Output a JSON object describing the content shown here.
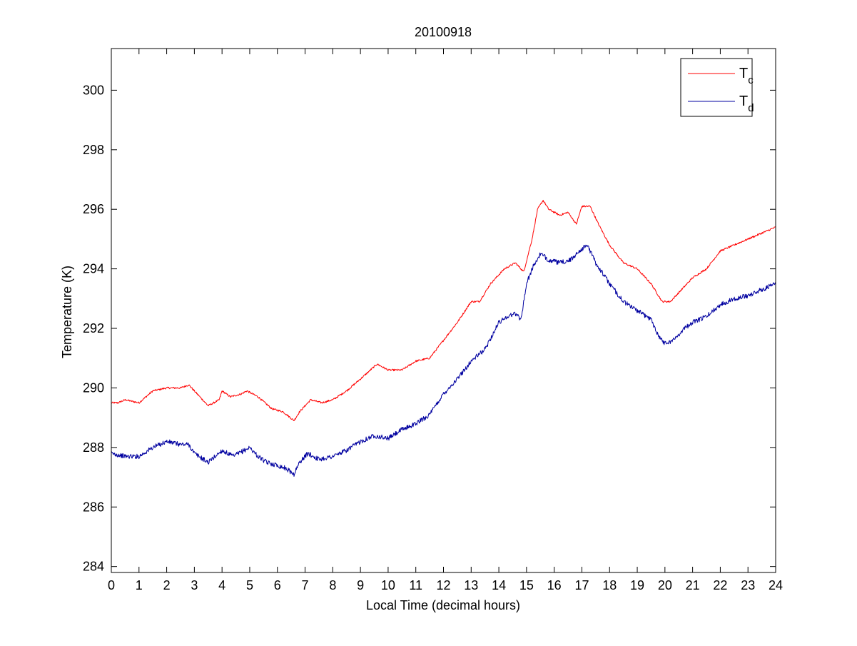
{
  "chart_data": {
    "type": "line",
    "title": "20100918",
    "xlabel": "Local Time (decimal hours)",
    "ylabel": "Temperature (K)",
    "xlim": [
      0,
      24
    ],
    "ylim": [
      283.8,
      301.4
    ],
    "xticks": [
      0,
      1,
      2,
      3,
      4,
      5,
      6,
      7,
      8,
      9,
      10,
      11,
      12,
      13,
      14,
      15,
      16,
      17,
      18,
      19,
      20,
      21,
      22,
      23,
      24
    ],
    "yticks": [
      284,
      286,
      288,
      290,
      292,
      294,
      296,
      298,
      300
    ],
    "grid": false,
    "legend_position": "top-right",
    "series": [
      {
        "name": "T",
        "subscript": "c",
        "color": "#ff0000",
        "x": [
          0,
          0.25,
          0.5,
          1,
          1.5,
          2,
          2.5,
          2.8,
          3,
          3.5,
          3.9,
          4,
          4.3,
          4.7,
          4.9,
          5.3,
          5.8,
          6.2,
          6.6,
          6.8,
          7.2,
          7.6,
          8,
          8.5,
          9,
          9.6,
          10,
          10.5,
          11,
          11.5,
          12,
          12.5,
          13,
          13.3,
          13.7,
          14.2,
          14.6,
          14.9,
          15.2,
          15.4,
          15.6,
          15.8,
          16.2,
          16.5,
          16.8,
          17,
          17.3,
          17.6,
          18,
          18.5,
          19,
          19.5,
          19.9,
          20.2,
          20.6,
          21,
          21.5,
          22,
          22.5,
          23,
          23.5,
          24
        ],
        "values": [
          289.5,
          289.5,
          289.6,
          289.5,
          289.9,
          290.0,
          290.0,
          290.1,
          289.9,
          289.4,
          289.6,
          289.9,
          289.7,
          289.8,
          289.9,
          289.7,
          289.3,
          289.2,
          288.9,
          289.2,
          289.6,
          289.5,
          289.6,
          289.9,
          290.3,
          290.8,
          290.6,
          290.6,
          290.9,
          291.0,
          291.6,
          292.2,
          292.9,
          292.9,
          293.5,
          294.0,
          294.2,
          293.9,
          295.0,
          296.0,
          296.3,
          296.0,
          295.8,
          295.9,
          295.5,
          296.1,
          296.1,
          295.5,
          294.8,
          294.2,
          294.0,
          293.5,
          292.9,
          292.9,
          293.3,
          293.7,
          294.0,
          294.6,
          294.8,
          295.0,
          295.2,
          295.4
        ]
      },
      {
        "name": "T",
        "subscript": "d",
        "color": "#0000a0",
        "x": [
          0,
          0.5,
          1,
          1.5,
          2,
          2.5,
          2.8,
          3,
          3.5,
          4,
          4.4,
          4.8,
          5,
          5.3,
          5.6,
          6,
          6.3,
          6.6,
          6.8,
          7.1,
          7.5,
          8,
          8.5,
          9,
          9.5,
          10,
          10.5,
          11,
          11.5,
          12,
          12.5,
          13,
          13.5,
          14,
          14.3,
          14.6,
          14.8,
          15,
          15.2,
          15.5,
          15.8,
          16.2,
          16.6,
          16.9,
          17.2,
          17.5,
          18,
          18.5,
          19,
          19.5,
          19.8,
          20,
          20.3,
          20.7,
          21,
          21.5,
          22,
          22.5,
          23,
          23.5,
          24
        ],
        "values": [
          287.8,
          287.7,
          287.7,
          288.0,
          288.2,
          288.1,
          288.1,
          287.8,
          287.5,
          287.9,
          287.7,
          287.9,
          288.0,
          287.7,
          287.5,
          287.4,
          287.3,
          287.1,
          287.5,
          287.8,
          287.6,
          287.7,
          287.9,
          288.2,
          288.4,
          288.3,
          288.6,
          288.8,
          289.1,
          289.8,
          290.3,
          290.9,
          291.3,
          292.2,
          292.4,
          292.5,
          292.3,
          293.5,
          294.0,
          294.5,
          294.3,
          294.2,
          294.3,
          294.6,
          294.8,
          294.2,
          293.5,
          292.9,
          292.6,
          292.3,
          291.7,
          291.5,
          291.6,
          292.0,
          292.2,
          292.4,
          292.8,
          293.0,
          293.1,
          293.3,
          293.5
        ]
      }
    ]
  }
}
